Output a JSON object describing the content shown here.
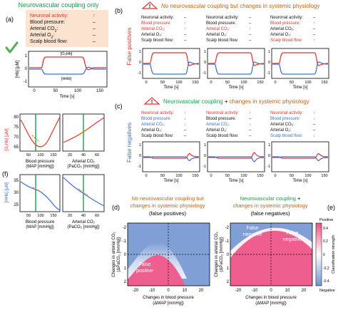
{
  "colors": {
    "red": "#e8302b",
    "blue": "#3a6fc9",
    "green": "#13a14a",
    "orange": "#b5651d",
    "pink": "#ee5f8f",
    "light_blue": "#7f9fd6",
    "orange_box": "#fbe3cf",
    "check": "#4caf50"
  },
  "panel_a": {
    "label": "(a)",
    "header": "Neurovascular coupling only",
    "rows": [
      {
        "label": "Neuronal activity:",
        "symbol": "↑",
        "label_color": "red"
      },
      {
        "label": "Blood pressure:",
        "symbol": "–",
        "label_color": "black"
      },
      {
        "label": "Arterial CO",
        "sub": "2",
        "suffix": ":",
        "symbol": "–",
        "label_color": "black"
      },
      {
        "label": "Arterial O",
        "sub": "2",
        "suffix": ":",
        "symbol": "–",
        "label_color": "black"
      },
      {
        "label": "Scalp blood flow:",
        "symbol": "–",
        "label_color": "black"
      }
    ],
    "check_icon": "checkmark-icon",
    "ylabel": "[Hb] [μM]",
    "xlabel": "Time [s]",
    "yticks": [
      "1",
      "0",
      "-1"
    ],
    "xticks": [
      "0",
      "50",
      "100",
      "150"
    ],
    "legend_o2hb": "[O₂Hb]",
    "legend_hhb": "[HHb]"
  },
  "panel_b": {
    "label": "(b)",
    "warn_icon": "warning-triangle-icon",
    "title_prefix": "No",
    "title_rest": " neurovascular coupling but changes in systemic physiology",
    "row_label": "False positives",
    "columns": [
      {
        "rows": [
          {
            "label": "Neuronal activity:",
            "symbol": "–",
            "color": "black"
          },
          {
            "label": "Blood pressure:",
            "symbol": "↑",
            "color": "red"
          },
          {
            "label": "Arterial CO₂:",
            "symbol": "↑",
            "color": "red"
          },
          {
            "label": "Arterial O₂:",
            "symbol": "–",
            "color": "black"
          },
          {
            "label": "Scalp blood flow:",
            "symbol": "–",
            "color": "black"
          }
        ]
      },
      {
        "rows": [
          {
            "label": "Neuronal activity:",
            "symbol": "–",
            "color": "black"
          },
          {
            "label": "Blood pressure:",
            "symbol": "–",
            "color": "black"
          },
          {
            "label": "Arterial CO₂:",
            "symbol": "↑",
            "color": "red"
          },
          {
            "label": "Arterial O₂:",
            "symbol": "–",
            "color": "black"
          },
          {
            "label": "Scalp blood flow:",
            "symbol": "–",
            "color": "black"
          }
        ]
      },
      {
        "rows": [
          {
            "label": "Neuronal activity:",
            "symbol": "–",
            "color": "black"
          },
          {
            "label": "Blood pressure:",
            "symbol": "↑",
            "color": "red"
          },
          {
            "label": "Arterial CO₂:",
            "symbol": "–",
            "color": "black"
          },
          {
            "label": "Arterial O₂:",
            "symbol": "–",
            "color": "black"
          },
          {
            "label": "Scalp blood flow:",
            "symbol": "↑",
            "color": "red"
          }
        ]
      }
    ],
    "yticks": [
      "1",
      "0",
      "-1"
    ],
    "xticks": [
      "0",
      "50",
      "100",
      "150"
    ],
    "xlabel": "Time [s]"
  },
  "panel_c": {
    "label": "(c)",
    "warn_icon": "warning-triangle-icon",
    "title_a": "Neurovascular coupling",
    "title_plus": " + ",
    "title_b": "changes in systemic physiology",
    "row_label": "False negatives",
    "columns": [
      {
        "rows": [
          {
            "label": "Neuronal activity:",
            "symbol": "↑",
            "color": "red"
          },
          {
            "label": "Blood pressure:",
            "symbol": "↓",
            "color": "blue"
          },
          {
            "label": "Arterial CO₂:",
            "symbol": "↓",
            "color": "blue"
          },
          {
            "label": "Arterial O₂:",
            "symbol": "–",
            "color": "black"
          },
          {
            "label": "Scalp blood flow:",
            "symbol": "–",
            "color": "black"
          }
        ]
      },
      {
        "rows": [
          {
            "label": "Neuronal activity:",
            "symbol": "↑",
            "color": "red"
          },
          {
            "label": "Blood pressure:",
            "symbol": "–",
            "color": "black"
          },
          {
            "label": "Arterial CO₂:",
            "symbol": "↓",
            "color": "blue"
          },
          {
            "label": "Arterial O₂:",
            "symbol": "–",
            "color": "black"
          },
          {
            "label": "Scalp blood flow:",
            "symbol": "–",
            "color": "black"
          }
        ]
      },
      {
        "rows": [
          {
            "label": "Neuronal activity:",
            "symbol": "↑",
            "color": "red"
          },
          {
            "label": "Blood pressure:",
            "symbol": "↓",
            "color": "blue"
          },
          {
            "label": "Arterial CO₂:",
            "symbol": "–",
            "color": "black"
          },
          {
            "label": "Arterial O₂:",
            "symbol": "–",
            "color": "black"
          },
          {
            "label": "Scalp blood flow:",
            "symbol": "↓",
            "color": "blue"
          }
        ]
      }
    ],
    "yticks": [
      "1",
      "0",
      "-1"
    ],
    "xticks": [
      "0",
      "50",
      "100",
      "150"
    ],
    "xlabel": "Time [s]"
  },
  "panel_left": {
    "label_f": "(f)",
    "top_ylabel": "[O₂Hb] [μM]",
    "bottom_ylabel": "[HHb] [μM]",
    "top_yticks": [
      "80",
      "75",
      "70",
      "65"
    ],
    "bottom_yticks": [
      "35",
      "30",
      "25"
    ],
    "left_xticks": [
      "50",
      "100",
      "150"
    ],
    "right_xticks": [
      "20",
      "40",
      "60"
    ],
    "xlabel_left_1": "Blood pressure",
    "xlabel_left_2": "(MAP [mmHg])",
    "xlabel_right_1": "Arterial CO₂",
    "xlabel_right_2": "(PaCO₂ [mmHg])"
  },
  "panel_d": {
    "label": "(d)",
    "title_1a": "No",
    "title_1b": " neurovascular coupling but",
    "title_2": "changes in systemic physiology",
    "title_3": "(false positives)",
    "region": [
      "False",
      "positive"
    ],
    "ylabel_1": "Changes in arterial CO₂",
    "ylabel_2": "(ΔPaCO₂ [mmHg])",
    "xlabel_1": "Changes in blood pressure",
    "xlabel_2": "(ΔMAP [mmHg])",
    "yticks": [
      "-2",
      "-1",
      "0",
      "1",
      "2"
    ],
    "xticks": [
      "-20",
      "-10",
      "0",
      "10",
      "20"
    ]
  },
  "panel_e": {
    "label": "(e)",
    "title_1a": "Neurovascular coupling",
    "title_1b": " +",
    "title_2": "changes in systemic physiology",
    "title_3": "(false negatives)",
    "region_1": [
      "False",
      "negative"
    ],
    "region_2": [
      "False",
      "negative"
    ],
    "ylabel_1": "Changes in arterial CO₂",
    "ylabel_2": "(ΔPaCO₂ [mmHg])",
    "xlabel_1": "Changes in blood pressure",
    "xlabel_2": "(ΔMAP [mmHg])",
    "yticks": [
      "-2",
      "-1",
      "0",
      "1",
      "2"
    ],
    "xticks": [
      "-20",
      "-10",
      "0",
      "10",
      "20"
    ]
  },
  "colorbar": {
    "top_label": "Positive",
    "bottom_label": "Negative",
    "title": "Classification strength",
    "ticks": [
      "0.4",
      "0.2",
      "0",
      "-0.2",
      "-0.4"
    ]
  }
}
